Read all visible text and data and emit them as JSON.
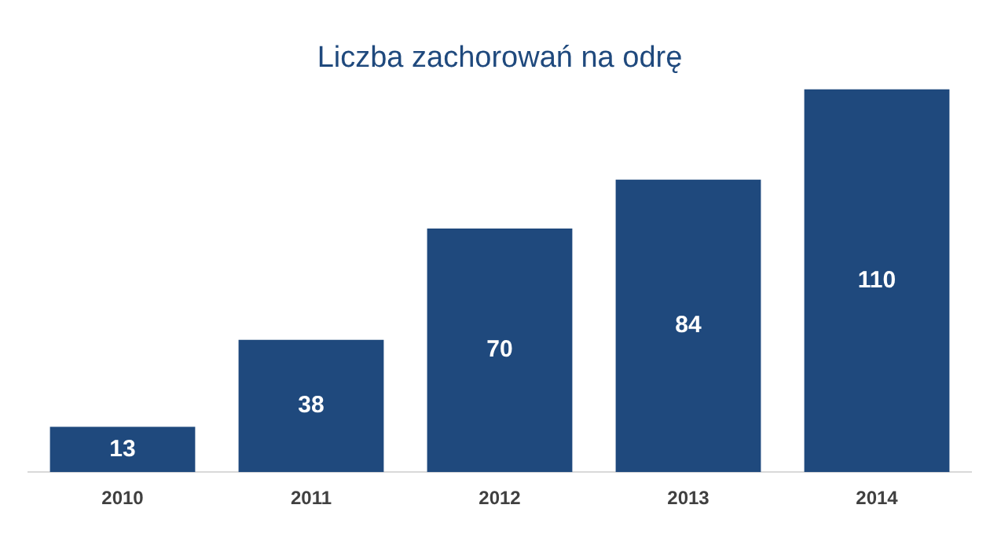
{
  "chart_data": {
    "type": "bar",
    "title": "Liczba zachorowań na odrę",
    "categories": [
      "2010",
      "2011",
      "2012",
      "2013",
      "2014"
    ],
    "values": [
      13,
      38,
      70,
      84,
      110
    ],
    "color": "#1f497d",
    "data_labels": true,
    "grid": false,
    "legend": false
  }
}
